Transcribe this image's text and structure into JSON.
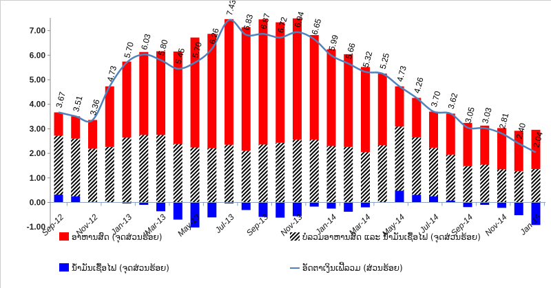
{
  "chart_data": {
    "type": "bar",
    "stacked": true,
    "title": "",
    "xlabel": "",
    "ylabel": "",
    "ylim": [
      -1,
      7.6
    ],
    "yticks": [
      "-1.00",
      "0.00",
      "1.00",
      "2.00",
      "3.00",
      "4.00",
      "5.00",
      "6.00",
      "7.00"
    ],
    "grid": false,
    "legend_placement": "bottom",
    "categories": [
      "Sep-12",
      "Oct-12",
      "Nov-12",
      "Dec-12",
      "Jan-13",
      "Feb-13",
      "Mar-13",
      "Apr-13",
      "May-13",
      "Jun-13",
      "Jul-13",
      "Aug-13",
      "Sep-13",
      "Oct-13",
      "Nov-13",
      "Dec-13",
      "Jan-14",
      "Feb-14",
      "Mar-14",
      "Apr-14",
      "May-14",
      "Jun-14",
      "Jul-14",
      "Aug-14",
      "Sep-14",
      "Oct-14",
      "Nov-14",
      "Dec-14",
      "Jan-15"
    ],
    "xtick_labels": [
      "Sep-12",
      "Nov-12",
      "Jan-13",
      "Mar-13",
      "May-13",
      "Jul-13",
      "Sep-13",
      "Nov-13",
      "Jan-14",
      "Mar-14",
      "May-14",
      "Jul-14",
      "Sep-14",
      "Nov-14",
      "Jan-15"
    ],
    "series": [
      {
        "name": "ອາຫານສົດ (ຈຸດສ່ວນຮ້ອຍ)",
        "kind": "bar",
        "color": "#ff0000",
        "values": [
          0.95,
          0.91,
          1.17,
          2.47,
          3.1,
          3.38,
          3.41,
          3.77,
          4.48,
          4.66,
          5.12,
          5.03,
          5.1,
          4.91,
          4.94,
          4.26,
          3.94,
          3.78,
          3.47,
          2.92,
          1.64,
          1.61,
          1.47,
          1.67,
          1.76,
          1.59,
          1.68,
          1.64,
          1.6
        ]
      },
      {
        "name": "ບໍ່ລວມອາຫານສົດ ແລະ ນ້ຳມັນເຊື້ອໄຟ (ຈຸດສ່ວນຮ້ອຍ)",
        "kind": "bar",
        "pattern": "hatched",
        "values": [
          2.4,
          2.35,
          2.17,
          2.26,
          2.64,
          2.75,
          2.75,
          2.38,
          2.24,
          2.21,
          2.35,
          2.11,
          2.36,
          2.43,
          2.56,
          2.56,
          2.3,
          2.26,
          2.05,
          2.33,
          2.61,
          2.34,
          1.98,
          1.87,
          1.48,
          1.54,
          1.35,
          1.28,
          1.36
        ]
      },
      {
        "name": "ນ້ຳມັນເຊື້ອໄຟ (ຈຸດສ່ວນຮ້ອຍ)",
        "kind": "bar",
        "color": "#0000ff",
        "values": [
          0.32,
          0.25,
          0.02,
          0.0,
          -0.04,
          -0.1,
          -0.36,
          -0.7,
          -1.02,
          -0.61,
          -0.04,
          -0.31,
          -0.59,
          -0.62,
          -0.56,
          -0.17,
          -0.25,
          -0.38,
          -0.2,
          0.0,
          0.48,
          0.31,
          0.25,
          0.08,
          -0.19,
          -0.1,
          -0.22,
          -0.52,
          -0.92
        ]
      },
      {
        "name": "ອັດຕາເງິນເຟີ້ລວມ (ສ່ວນຮ້ອຍ)",
        "kind": "line",
        "color": "#4f81bd",
        "values": [
          3.67,
          3.51,
          3.36,
          4.73,
          5.7,
          6.03,
          5.8,
          5.45,
          5.7,
          6.26,
          7.43,
          6.83,
          6.87,
          6.72,
          6.94,
          6.65,
          5.99,
          5.66,
          5.32,
          5.25,
          4.73,
          4.26,
          3.7,
          3.62,
          3.05,
          3.03,
          2.81,
          2.4,
          2.04
        ],
        "data_labels": [
          "3.67",
          "3.51",
          "3.36",
          "4.73",
          "5.70",
          "6.03",
          "5.80",
          "5.45",
          "5.70",
          "6.26",
          "7.43",
          "6.83",
          "6.87",
          "6.72",
          "6.94",
          "6.65",
          "5.99",
          "5.66",
          "5.32",
          "5.25",
          "4.73",
          "4.26",
          "3.70",
          "3.62",
          "3.05",
          "3.03",
          "2.81",
          "2.40",
          "2.04"
        ]
      }
    ]
  }
}
